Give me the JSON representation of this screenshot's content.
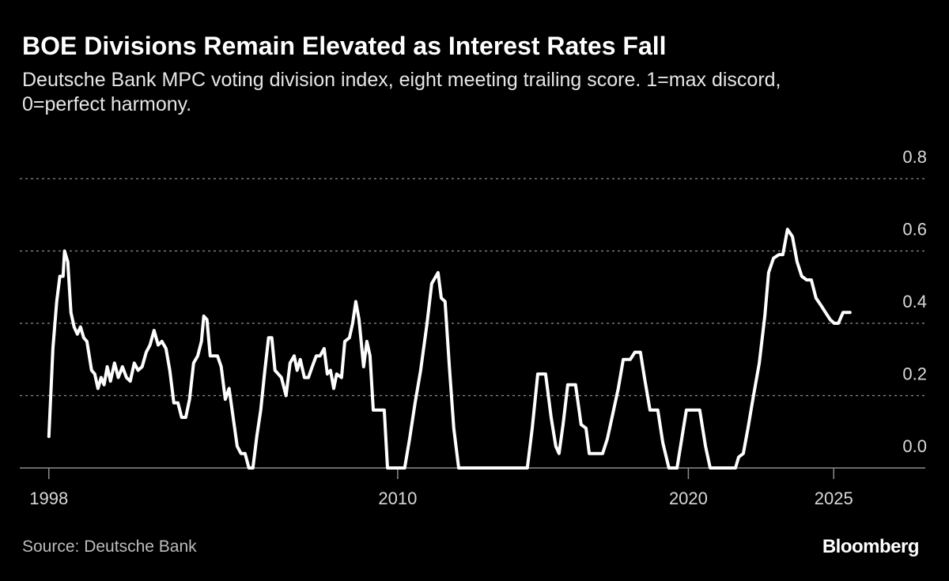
{
  "chart_data": {
    "type": "line",
    "title": "BOE Divisions Remain Elevated as Interest Rates Fall",
    "subtitle": "Deutsche Bank MPC voting division index, eight meeting trailing score. 1=max discord, 0=perfect harmony.",
    "source": "Source: Deutsche Bank",
    "brand": "Bloomberg",
    "color": "#ffffff",
    "x": [
      1998.0,
      1998.14,
      1998.27,
      1998.38,
      1998.49,
      1998.54,
      1998.65,
      1998.76,
      1998.87,
      1998.98,
      1999.09,
      1999.2,
      1999.31,
      1999.47,
      1999.58,
      1999.69,
      1999.8,
      1999.9,
      2000.01,
      2000.12,
      2000.26,
      2000.39,
      2000.53,
      2000.67,
      2000.8,
      2000.94,
      2001.07,
      2001.21,
      2001.35,
      2001.48,
      2001.62,
      2001.76,
      2001.89,
      2002.03,
      2002.16,
      2002.3,
      2002.44,
      2002.57,
      2002.71,
      2002.84,
      2002.98,
      2003.12,
      2003.25,
      2003.33,
      2003.44,
      2003.55,
      2003.66,
      2003.8,
      2003.93,
      2004.07,
      2004.2,
      2004.34,
      2004.48,
      2004.61,
      2004.75,
      2004.88,
      2005.02,
      2005.16,
      2005.29,
      2005.43,
      2005.56,
      2005.67,
      2005.78,
      2005.89,
      2006.0,
      2006.16,
      2006.3,
      2006.44,
      2006.54,
      2006.65,
      2006.79,
      2006.93,
      2007.06,
      2007.2,
      2007.33,
      2007.47,
      2007.58,
      2007.69,
      2007.8,
      2007.9,
      2008.07,
      2008.18,
      2008.34,
      2008.45,
      2008.56,
      2008.67,
      2008.83,
      2008.94,
      2009.05,
      2009.16,
      2009.32,
      2009.54,
      2009.65,
      2010.24,
      2010.41,
      2010.6,
      2010.79,
      2011.01,
      2011.17,
      2011.39,
      2011.5,
      2011.63,
      2011.77,
      2011.93,
      2012.1,
      2014.46,
      2014.63,
      2014.82,
      2015.09,
      2015.28,
      2015.44,
      2015.55,
      2015.69,
      2015.85,
      2016.12,
      2016.31,
      2016.48,
      2016.59,
      2017.05,
      2017.21,
      2017.4,
      2017.59,
      2017.76,
      2018.0,
      2018.16,
      2018.35,
      2018.49,
      2018.68,
      2018.95,
      2019.12,
      2019.33,
      2019.61,
      2019.77,
      2019.93,
      2020.39,
      2020.59,
      2020.75,
      2021.62,
      2021.73,
      2021.89,
      2022.05,
      2022.22,
      2022.44,
      2022.63,
      2022.76,
      2022.93,
      2023.12,
      2023.25,
      2023.41,
      2023.58,
      2023.74,
      2023.9,
      2024.07,
      2024.23,
      2024.39,
      2024.56,
      2024.72,
      2024.88,
      2025.02,
      2025.16,
      2025.32,
      2025.56
    ],
    "values": [
      0.087,
      0.33,
      0.46,
      0.53,
      0.53,
      0.6,
      0.57,
      0.43,
      0.39,
      0.37,
      0.39,
      0.36,
      0.35,
      0.27,
      0.26,
      0.22,
      0.25,
      0.23,
      0.28,
      0.24,
      0.29,
      0.25,
      0.28,
      0.25,
      0.24,
      0.29,
      0.27,
      0.28,
      0.32,
      0.34,
      0.38,
      0.34,
      0.35,
      0.33,
      0.27,
      0.18,
      0.18,
      0.14,
      0.14,
      0.19,
      0.29,
      0.31,
      0.35,
      0.42,
      0.41,
      0.31,
      0.31,
      0.31,
      0.28,
      0.19,
      0.22,
      0.14,
      0.06,
      0.04,
      0.04,
      0,
      0,
      0.09,
      0.16,
      0.27,
      0.36,
      0.36,
      0.27,
      0.26,
      0.25,
      0.2,
      0.29,
      0.31,
      0.27,
      0.3,
      0.25,
      0.25,
      0.28,
      0.31,
      0.31,
      0.33,
      0.26,
      0.27,
      0.22,
      0.26,
      0.25,
      0.35,
      0.36,
      0.4,
      0.46,
      0.41,
      0.28,
      0.35,
      0.31,
      0.16,
      0.16,
      0.16,
      0,
      0,
      0.08,
      0.18,
      0.27,
      0.4,
      0.51,
      0.54,
      0.47,
      0.46,
      0.29,
      0.11,
      0,
      0,
      0.11,
      0.26,
      0.26,
      0.14,
      0.06,
      0.04,
      0.12,
      0.23,
      0.23,
      0.12,
      0.11,
      0.04,
      0.04,
      0.08,
      0.15,
      0.22,
      0.3,
      0.3,
      0.32,
      0.32,
      0.25,
      0.16,
      0.16,
      0.07,
      0,
      0,
      0.08,
      0.16,
      0.16,
      0.06,
      0,
      0,
      0.03,
      0.04,
      0.11,
      0.19,
      0.29,
      0.42,
      0.54,
      0.58,
      0.59,
      0.59,
      0.66,
      0.64,
      0.57,
      0.53,
      0.52,
      0.52,
      0.47,
      0.45,
      0.43,
      0.41,
      0.4,
      0.4,
      0.43,
      0.43
    ],
    "xlim": [
      1997.0,
      2028.15
    ],
    "xticks": [
      1998,
      2010,
      2020,
      2025
    ],
    "ylim": [
      0,
      0.85
    ],
    "yticks": [
      {
        "value": 0,
        "label": "0.0"
      },
      0.2,
      0.4,
      0.6,
      0.8
    ],
    "grid": true
  }
}
